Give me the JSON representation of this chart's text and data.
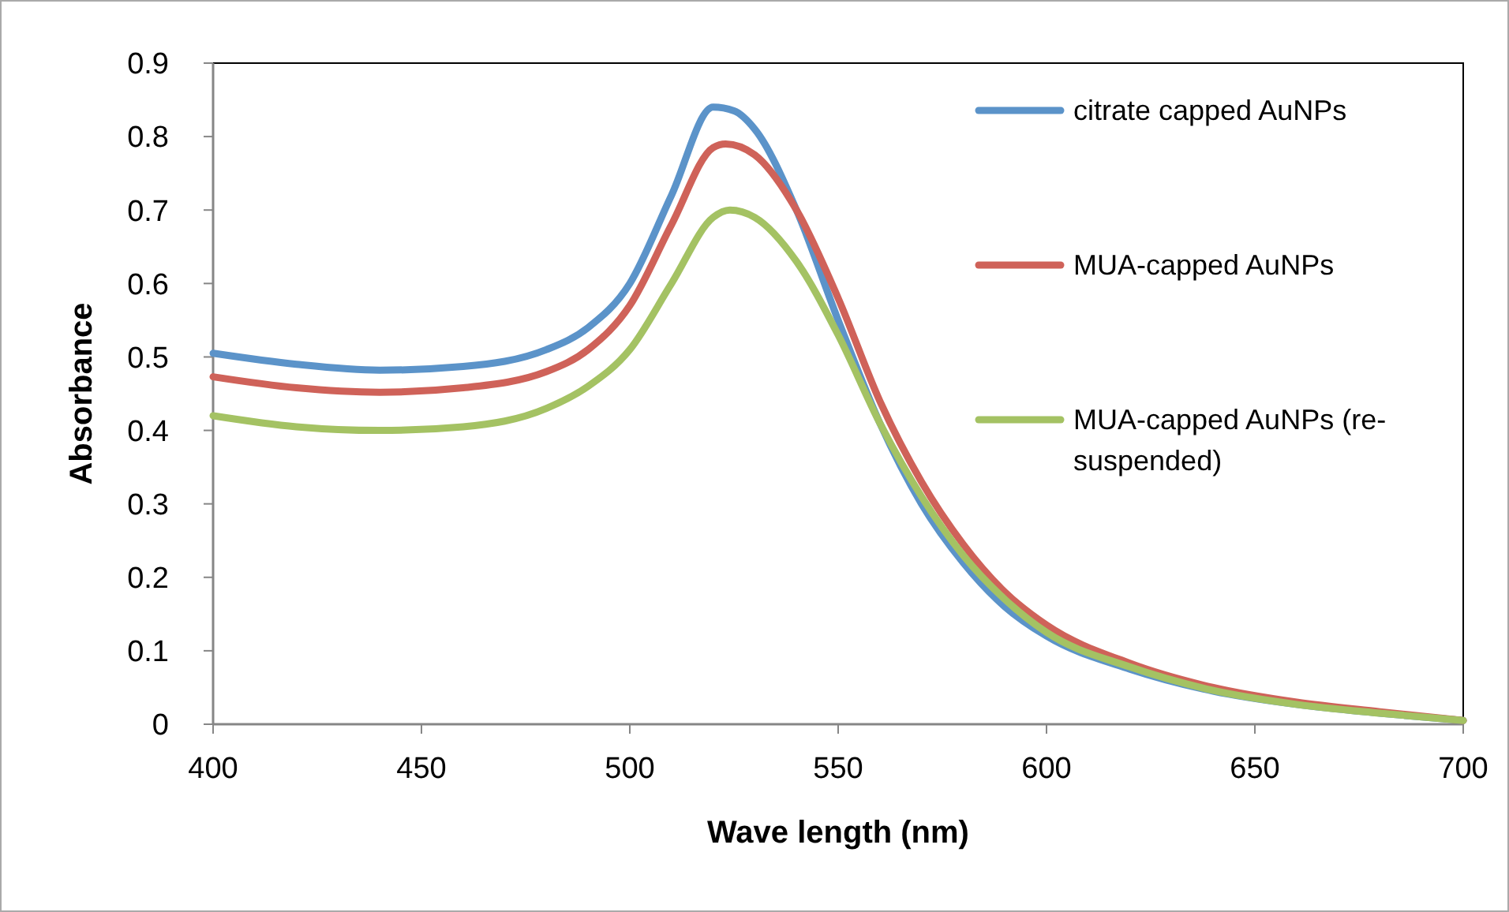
{
  "chart_data": {
    "type": "line",
    "xlabel": "Wave length (nm)",
    "ylabel": "Absorbance",
    "xlim": [
      400,
      700
    ],
    "xticks": [
      400,
      450,
      500,
      550,
      600,
      650,
      700
    ],
    "ylim": [
      0,
      0.9
    ],
    "yticks": [
      0,
      0.1,
      0.2,
      0.3,
      0.4,
      0.5,
      0.6,
      0.7,
      0.8,
      0.9
    ],
    "grid": false,
    "legend": "top right",
    "marker": "none",
    "line_style": "solid",
    "series": [
      {
        "name": "citrate capped AuNPs",
        "color": "#5b93c9",
        "x": [
          400,
          420,
          440,
          460,
          480,
          490,
          500,
          510,
          520,
          525,
          530,
          540,
          550,
          560,
          570,
          580,
          590,
          600,
          620,
          640,
          660,
          680,
          700
        ],
        "values": [
          0.505,
          0.49,
          0.482,
          0.487,
          0.51,
          0.54,
          0.6,
          0.72,
          0.84,
          0.835,
          0.81,
          0.7,
          0.55,
          0.41,
          0.3,
          0.22,
          0.16,
          0.12,
          0.075,
          0.045,
          0.027,
          0.015,
          0.005
        ]
      },
      {
        "name": "MUA-capped AuNPs",
        "color": "#cf6259",
        "x": [
          400,
          420,
          440,
          460,
          480,
          490,
          500,
          510,
          520,
          523,
          530,
          540,
          550,
          560,
          570,
          580,
          590,
          600,
          620,
          640,
          660,
          680,
          700
        ],
        "values": [
          0.473,
          0.458,
          0.452,
          0.458,
          0.48,
          0.51,
          0.57,
          0.68,
          0.785,
          0.79,
          0.775,
          0.7,
          0.58,
          0.44,
          0.33,
          0.245,
          0.18,
          0.135,
          0.083,
          0.05,
          0.03,
          0.017,
          0.005
        ]
      },
      {
        "name": "MUA-capped AuNPs (re-suspended)",
        "color": "#a4c263",
        "x": [
          400,
          420,
          440,
          460,
          480,
          490,
          500,
          510,
          520,
          524,
          530,
          540,
          550,
          560,
          570,
          580,
          590,
          600,
          620,
          640,
          660,
          680,
          700
        ],
        "values": [
          0.42,
          0.405,
          0.4,
          0.405,
          0.43,
          0.46,
          0.51,
          0.6,
          0.69,
          0.7,
          0.69,
          0.63,
          0.53,
          0.41,
          0.31,
          0.23,
          0.17,
          0.125,
          0.078,
          0.046,
          0.027,
          0.015,
          0.005
        ]
      }
    ]
  }
}
